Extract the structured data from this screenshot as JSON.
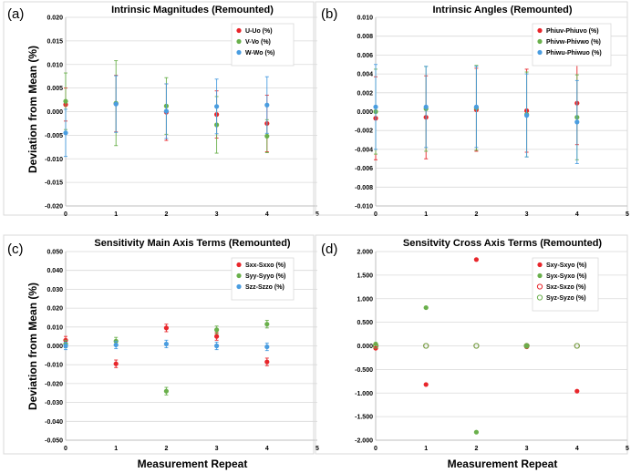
{
  "figure": {
    "ylabel": "Deviation from Mean (%)",
    "xlabel": "Measurement Repeat"
  },
  "chart_data": [
    {
      "type": "scatter",
      "panel_label": "(a)",
      "title": "Intrinsic Magnitudes (Remounted)",
      "ylim": [
        -0.02,
        0.02
      ],
      "yticks": [
        "0.020",
        "0.015",
        "0.010",
        "0.005",
        "0.000",
        "-0.005",
        "-0.010",
        "-0.015",
        "-0.020"
      ],
      "xlim": [
        0,
        5
      ],
      "xticks": [
        "0",
        "1",
        "2",
        "3",
        "4",
        "5"
      ],
      "x": [
        0,
        1,
        2,
        3,
        4
      ],
      "legend_position": "top-right",
      "series": [
        {
          "name": "U-Uo (%)",
          "color": "#e8262b",
          "marker": "filled",
          "values": [
            0.0015,
            0.0017,
            -0.0001,
            -0.0006,
            -0.0025
          ],
          "errors": [
            0.0035,
            0.006,
            0.006,
            0.005,
            0.006
          ]
        },
        {
          "name": "V-Vo (%)",
          "color": "#6ab04c",
          "marker": "filled",
          "values": [
            0.0022,
            0.0018,
            0.0012,
            -0.0028,
            -0.0052
          ],
          "errors": [
            0.006,
            0.009,
            0.006,
            0.006,
            0.0035
          ]
        },
        {
          "name": "W-Wo (%)",
          "color": "#4a9de0",
          "marker": "filled",
          "values": [
            -0.0045,
            0.0016,
            0.0001,
            0.0011,
            0.0014
          ],
          "errors": [
            0.005,
            0.006,
            0.0058,
            0.0058,
            0.006
          ]
        }
      ]
    },
    {
      "type": "scatter",
      "panel_label": "(b)",
      "title": "Intrinsic Angles (Remounted)",
      "ylim": [
        -0.01,
        0.01
      ],
      "yticks": [
        "0.010",
        "0.008",
        "0.006",
        "0.004",
        "0.002",
        "0.000",
        "-0.002",
        "-0.004",
        "-0.006",
        "-0.008",
        "-0.010"
      ],
      "xlim": [
        0,
        5
      ],
      "xticks": [
        "0",
        "1",
        "2",
        "3",
        "4",
        "5"
      ],
      "x": [
        0,
        1,
        2,
        3,
        4
      ],
      "legend_position": "top-right",
      "series": [
        {
          "name": "Phiuv-Phiuvo (%)",
          "color": "#e8262b",
          "marker": "filled",
          "values": [
            -0.0007,
            -0.0006,
            0.0002,
            0.0001,
            0.0009
          ],
          "errors": [
            0.0044,
            0.0044,
            0.0044,
            0.0044,
            0.0044
          ]
        },
        {
          "name": "Phivw-Phivwo (%)",
          "color": "#6ab04c",
          "marker": "filled",
          "values": [
            0.0,
            0.0003,
            0.0004,
            -0.0003,
            -0.0006
          ],
          "errors": [
            0.0045,
            0.0045,
            0.0045,
            0.0045,
            0.0045
          ]
        },
        {
          "name": "Phiwu-Phiwuo (%)",
          "color": "#4a9de0",
          "marker": "filled",
          "values": [
            0.0005,
            0.0005,
            0.0005,
            -0.0004,
            -0.0011
          ],
          "errors": [
            0.0045,
            0.0043,
            0.0043,
            0.0044,
            0.0044
          ]
        }
      ]
    },
    {
      "type": "scatter",
      "panel_label": "(c)",
      "title": "Sensitivity Main Axis Terms (Remounted)",
      "ylim": [
        -0.05,
        0.05
      ],
      "yticks": [
        "0.050",
        "0.040",
        "0.030",
        "0.020",
        "0.010",
        "0.000",
        "-0.010",
        "-0.020",
        "-0.030",
        "-0.040",
        "-0.050"
      ],
      "xlim": [
        0,
        5
      ],
      "xticks": [
        "0",
        "1",
        "2",
        "3",
        "4",
        "5"
      ],
      "x": [
        0,
        1,
        2,
        3,
        4
      ],
      "legend_position": "top-right",
      "series": [
        {
          "name": "Sxx-Sxxo (%)",
          "color": "#e8262b",
          "marker": "filled",
          "values": [
            0.003,
            -0.0095,
            0.0095,
            0.005,
            -0.0085
          ],
          "errors": [
            0.002,
            0.002,
            0.002,
            0.002,
            0.002
          ]
        },
        {
          "name": "Syy-Syyo (%)",
          "color": "#6ab04c",
          "marker": "filled",
          "values": [
            0.001,
            0.0025,
            -0.024,
            0.0085,
            0.0115
          ],
          "errors": [
            0.002,
            0.002,
            0.002,
            0.002,
            0.002
          ]
        },
        {
          "name": "Szz-Szzo (%)",
          "color": "#4a9de0",
          "marker": "filled",
          "values": [
            0.0,
            0.0005,
            0.001,
            0.0,
            -0.0005
          ],
          "errors": [
            0.002,
            0.002,
            0.002,
            0.002,
            0.002
          ]
        }
      ]
    },
    {
      "type": "scatter",
      "panel_label": "(d)",
      "title": "Sensitvity Cross Axis Terms (Remounted)",
      "ylim": [
        -2.0,
        2.0
      ],
      "yticks": [
        "2.000",
        "1.500",
        "1.000",
        "0.500",
        "0.000",
        "-0.500",
        "-1.000",
        "-1.500",
        "-2.000"
      ],
      "xlim": [
        0,
        5
      ],
      "xticks": [
        "0",
        "1",
        "2",
        "3",
        "4",
        "5"
      ],
      "x": [
        0,
        1,
        2,
        3,
        4
      ],
      "legend_position": "top-right",
      "series": [
        {
          "name": "Sxy-Sxyo (%)",
          "color": "#e8262b",
          "marker": "filled",
          "values": [
            -0.05,
            -0.82,
            1.83,
            -0.02,
            -0.96
          ]
        },
        {
          "name": "Syx-Syxo (%)",
          "color": "#6ab04c",
          "marker": "filled",
          "values": [
            0.04,
            0.81,
            -1.83,
            0.01,
            0.95
          ]
        },
        {
          "name": "Sxz-Sxzo (%)",
          "color": "#e8262b",
          "marker": "open",
          "values": [
            0.0,
            0.0,
            0.0,
            0.0,
            0.0
          ]
        },
        {
          "name": "Syz-Syzo (%)",
          "color": "#6ab04c",
          "marker": "open",
          "values": [
            0.0,
            0.0,
            0.0,
            0.0,
            0.0
          ]
        }
      ]
    }
  ]
}
